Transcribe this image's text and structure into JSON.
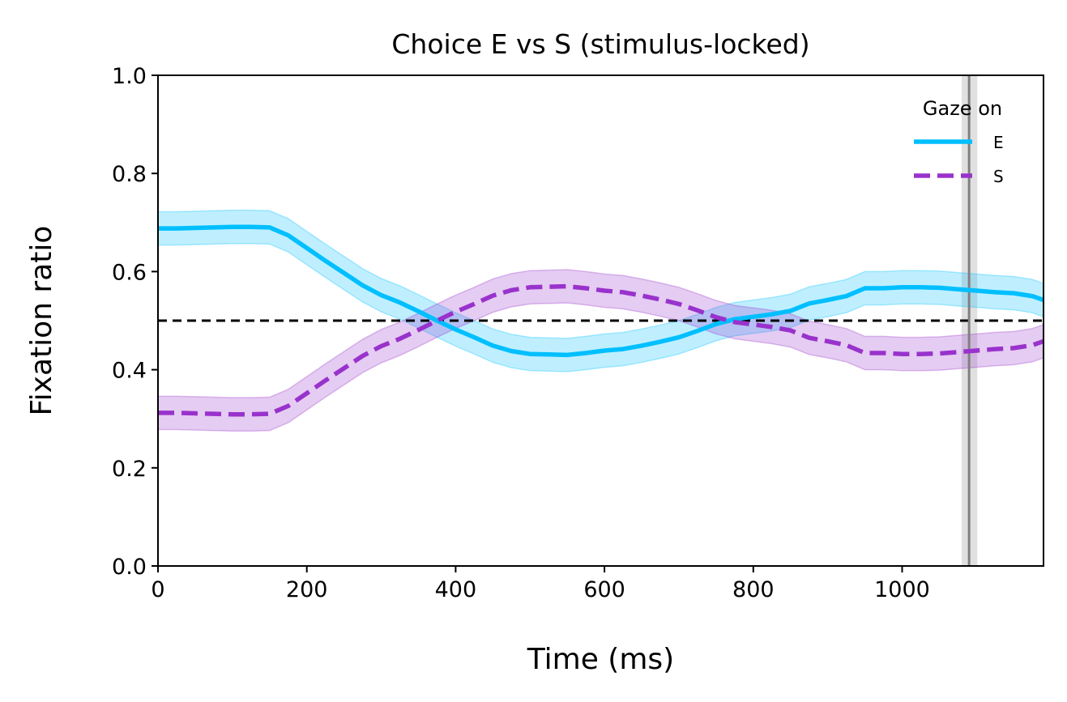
{
  "chart_data": {
    "type": "line",
    "title": "Choice E vs S (stimulus-locked)",
    "xlabel": "Time (ms)",
    "ylabel": "Fixation ratio",
    "xlim": [
      0,
      1190
    ],
    "ylim": [
      0.0,
      1.0
    ],
    "xticks": [
      0,
      200,
      400,
      600,
      800,
      1000
    ],
    "xtick_labels": [
      "0",
      "200",
      "400",
      "600",
      "800",
      "1000"
    ],
    "yticks": [
      0.0,
      0.2,
      0.4,
      0.6,
      0.8,
      1.0
    ],
    "ytick_labels": [
      "0.0",
      "0.2",
      "0.4",
      "0.6",
      "0.8",
      "1.0"
    ],
    "grid": false,
    "legend": {
      "title": "Gaze on",
      "placement": "top-right",
      "frame": false
    },
    "series": [
      {
        "name": "E",
        "color": "#00bfff",
        "linestyle": "solid",
        "x": [
          0,
          25,
          50,
          75,
          100,
          125,
          150,
          175,
          200,
          225,
          250,
          275,
          300,
          325,
          350,
          375,
          400,
          425,
          450,
          475,
          500,
          525,
          550,
          575,
          600,
          625,
          650,
          675,
          700,
          725,
          750,
          775,
          800,
          825,
          850,
          875,
          900,
          925,
          950,
          975,
          1000,
          1025,
          1050,
          1075,
          1100,
          1125,
          1150,
          1175,
          1190
        ],
        "y": [
          0.688,
          0.688,
          0.689,
          0.69,
          0.691,
          0.691,
          0.69,
          0.674,
          0.648,
          0.622,
          0.597,
          0.572,
          0.552,
          0.537,
          0.519,
          0.5,
          0.482,
          0.466,
          0.449,
          0.438,
          0.432,
          0.431,
          0.43,
          0.434,
          0.439,
          0.442,
          0.449,
          0.457,
          0.466,
          0.479,
          0.493,
          0.503,
          0.508,
          0.513,
          0.52,
          0.535,
          0.542,
          0.55,
          0.566,
          0.566,
          0.568,
          0.568,
          0.567,
          0.564,
          0.561,
          0.558,
          0.556,
          0.55,
          0.542
        ],
        "ci_halfwidth": 0.034
      },
      {
        "name": "S",
        "color": "#9932cc",
        "linestyle": "dashed",
        "x": [
          0,
          25,
          50,
          75,
          100,
          125,
          150,
          175,
          200,
          225,
          250,
          275,
          300,
          325,
          350,
          375,
          400,
          425,
          450,
          475,
          500,
          525,
          550,
          575,
          600,
          625,
          650,
          675,
          700,
          725,
          750,
          775,
          800,
          825,
          850,
          875,
          900,
          925,
          950,
          975,
          1000,
          1025,
          1050,
          1075,
          1100,
          1125,
          1150,
          1175,
          1190
        ],
        "y": [
          0.312,
          0.312,
          0.311,
          0.31,
          0.309,
          0.309,
          0.31,
          0.326,
          0.352,
          0.378,
          0.403,
          0.428,
          0.448,
          0.463,
          0.481,
          0.5,
          0.518,
          0.534,
          0.551,
          0.562,
          0.568,
          0.569,
          0.57,
          0.566,
          0.561,
          0.558,
          0.551,
          0.543,
          0.534,
          0.521,
          0.507,
          0.497,
          0.492,
          0.487,
          0.48,
          0.465,
          0.458,
          0.45,
          0.434,
          0.434,
          0.432,
          0.432,
          0.433,
          0.436,
          0.439,
          0.442,
          0.444,
          0.45,
          0.458
        ],
        "ci_halfwidth": 0.034
      }
    ],
    "reference_lines": [
      {
        "orientation": "horizontal",
        "value": 0.5,
        "color": "#000000",
        "linestyle": "dashed"
      },
      {
        "orientation": "vertical",
        "value": 0,
        "color": "#000000",
        "linestyle": "dashed"
      },
      {
        "orientation": "vertical",
        "value": 1090,
        "color": "#808080",
        "linestyle": "solid",
        "band": [
          1080,
          1101
        ]
      }
    ]
  }
}
